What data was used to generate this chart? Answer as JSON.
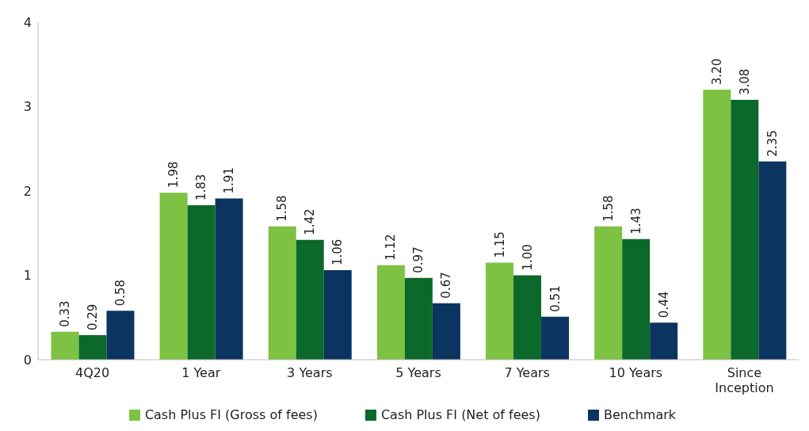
{
  "chart_data": {
    "type": "bar",
    "categories": [
      "4Q20",
      "1 Year",
      "3 Years",
      "5 Years",
      "7 Years",
      "10 Years",
      "Since Inception"
    ],
    "series": [
      {
        "name": "Cash Plus FI (Gross of fees)",
        "color": "#7dc242",
        "values": [
          0.33,
          1.98,
          1.58,
          1.12,
          1.15,
          1.58,
          3.2
        ],
        "value_labels": [
          "0.33",
          "1.98",
          "1.58",
          "1.12",
          "1.15",
          "1.58",
          "3.20"
        ]
      },
      {
        "name": "Cash Plus FI (Net of fees)",
        "color": "#0b6a2b",
        "values": [
          0.29,
          1.83,
          1.42,
          0.97,
          1.0,
          1.43,
          3.08
        ],
        "value_labels": [
          "0.29",
          "1.83",
          "1.42",
          "0.97",
          "1.00",
          "1.43",
          "3.08"
        ]
      },
      {
        "name": "Benchmark",
        "color": "#0c3460",
        "values": [
          0.58,
          1.91,
          1.06,
          0.67,
          0.51,
          0.44,
          2.35
        ]
      }
    ],
    "ylim": [
      0,
      4
    ],
    "yticks": [
      0,
      1,
      2,
      3,
      4
    ],
    "grid": false,
    "legend": "bottom",
    "data_labels": true
  }
}
